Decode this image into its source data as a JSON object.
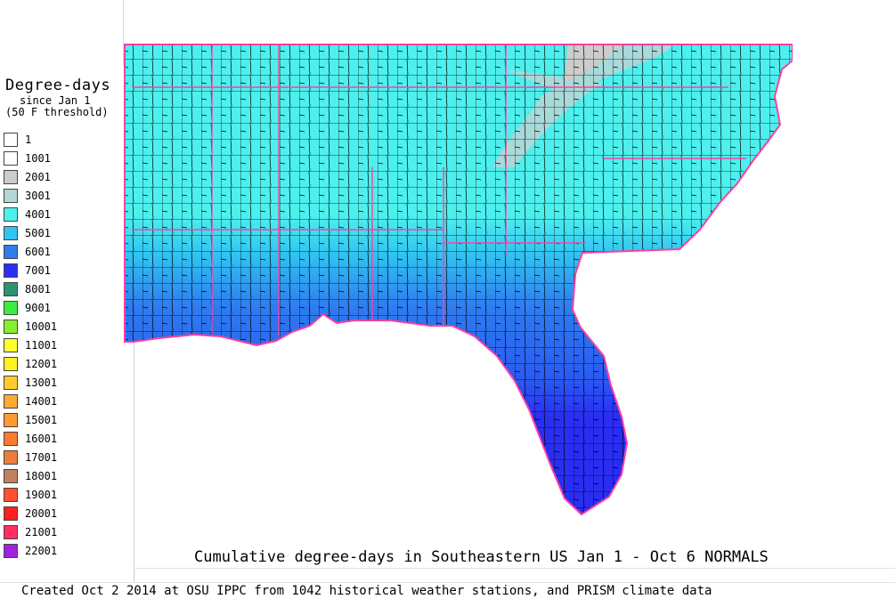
{
  "legend": {
    "title": "Degree-days",
    "subtitle1": "since Jan 1",
    "subtitle2": "(50 F threshold)",
    "items": [
      {
        "label": "1",
        "color": "#ffffff"
      },
      {
        "label": "1001",
        "color": "#ffffff"
      },
      {
        "label": "2001",
        "color": "#cccccc"
      },
      {
        "label": "3001",
        "color": "#b4d6d6"
      },
      {
        "label": "4001",
        "color": "#4ef0ee"
      },
      {
        "label": "5001",
        "color": "#30c4f2"
      },
      {
        "label": "6001",
        "color": "#2e7cf0"
      },
      {
        "label": "7001",
        "color": "#2a2ef2"
      },
      {
        "label": "8001",
        "color": "#2a9470"
      },
      {
        "label": "9001",
        "color": "#3cee3c"
      },
      {
        "label": "10001",
        "color": "#88ee30"
      },
      {
        "label": "11001",
        "color": "#ffff30"
      },
      {
        "label": "12001",
        "color": "#fff020"
      },
      {
        "label": "13001",
        "color": "#ffcc30"
      },
      {
        "label": "14001",
        "color": "#ffaa30"
      },
      {
        "label": "15001",
        "color": "#ff9a30"
      },
      {
        "label": "16001",
        "color": "#ff7a30"
      },
      {
        "label": "17001",
        "color": "#f07c3c"
      },
      {
        "label": "18001",
        "color": "#c08060"
      },
      {
        "label": "19001",
        "color": "#ff5030"
      },
      {
        "label": "20001",
        "color": "#ff2020"
      },
      {
        "label": "21001",
        "color": "#ff3060"
      },
      {
        "label": "22001",
        "color": "#a020e0"
      }
    ]
  },
  "map": {
    "title": "Cumulative degree-days in Southeastern US Jan 1 - Oct 6 NORMALS",
    "region": "Southeastern US",
    "border_color": "#ff3fa0",
    "county_line_color": "#000000"
  },
  "credit": "Created Oct 2 2014 at OSU IPPC from 1042 historical weather stations, and PRISM climate data"
}
